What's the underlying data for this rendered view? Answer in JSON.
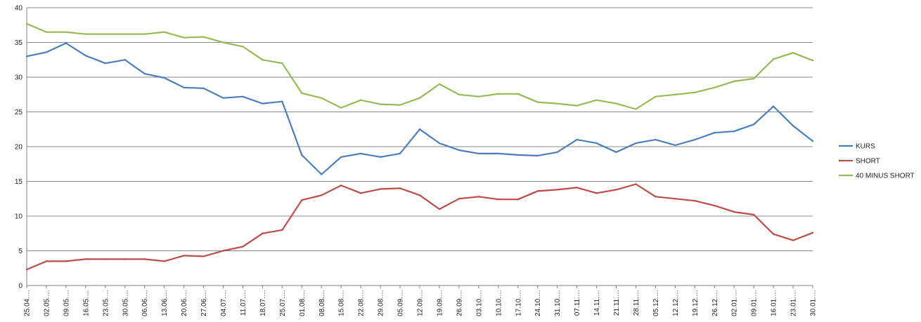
{
  "chart_data": {
    "type": "line",
    "title": "",
    "xlabel": "",
    "ylabel": "",
    "ylim": [
      0,
      40
    ],
    "yticks": [
      0,
      5,
      10,
      15,
      20,
      25,
      30,
      35,
      40
    ],
    "grid": true,
    "legend_position": "right",
    "x_tick_labels": [
      "25.04.…",
      "02.05.…",
      "09.05.…",
      "16.05.…",
      "23.05.…",
      "30.05.…",
      "06.06.…",
      "13.06.…",
      "20.06.…",
      "27.06.…",
      "04.07.…",
      "11.07.…",
      "18.07.…",
      "25.07.…",
      "01.08.…",
      "08.08.…",
      "15.08.…",
      "22.08.…",
      "29.08.…",
      "05.09.…",
      "12.09.…",
      "19.09.…",
      "26.09.…",
      "03.10.…",
      "10.10.…",
      "17.10.…",
      "24.10.…",
      "31.10.…",
      "07.11.…",
      "14.11.…",
      "21.11.…",
      "28.11.…",
      "05.12.…",
      "12.12.…",
      "19.12.…",
      "26.12.…",
      "02.01.…",
      "09.01.…",
      "16.01.…",
      "23.01.…",
      "30.01.…"
    ],
    "series": [
      {
        "name": "KURS",
        "color": "#4a7ebb",
        "values": [
          33.0,
          33.6,
          34.9,
          33.1,
          32.0,
          32.5,
          30.5,
          29.9,
          28.5,
          28.4,
          27.0,
          27.2,
          26.2,
          26.5,
          18.8,
          16.0,
          18.5,
          19.0,
          18.5,
          19.0,
          22.5,
          20.5,
          19.5,
          19.0,
          19.0,
          18.8,
          18.7,
          19.2,
          21.0,
          20.5,
          19.2,
          20.5,
          21.0,
          20.2,
          21.0,
          22.0,
          22.2,
          23.2,
          25.8,
          23.0,
          20.8
        ]
      },
      {
        "name": "SHORT",
        "color": "#be4b48",
        "values": [
          2.3,
          3.5,
          3.5,
          3.8,
          3.8,
          3.8,
          3.8,
          3.5,
          4.3,
          4.2,
          5.0,
          5.6,
          7.5,
          8.0,
          12.3,
          13.0,
          14.4,
          13.3,
          13.9,
          14.0,
          13.0,
          11.0,
          12.5,
          12.8,
          12.4,
          12.4,
          13.6,
          13.8,
          14.1,
          13.3,
          13.8,
          14.6,
          12.8,
          12.5,
          12.2,
          11.5,
          10.6,
          10.2,
          7.4,
          6.5,
          7.6
        ]
      },
      {
        "name": "40 MINUS SHORT",
        "color": "#98b954",
        "values": [
          37.7,
          36.5,
          36.5,
          36.2,
          36.2,
          36.2,
          36.2,
          36.5,
          35.7,
          35.8,
          35.0,
          34.4,
          32.5,
          32.0,
          27.7,
          27.0,
          25.6,
          26.7,
          26.1,
          26.0,
          27.0,
          29.0,
          27.5,
          27.2,
          27.6,
          27.6,
          26.4,
          26.2,
          25.9,
          26.7,
          26.2,
          25.4,
          27.2,
          27.5,
          27.8,
          28.5,
          29.4,
          29.8,
          32.6,
          33.5,
          32.4
        ]
      }
    ]
  }
}
